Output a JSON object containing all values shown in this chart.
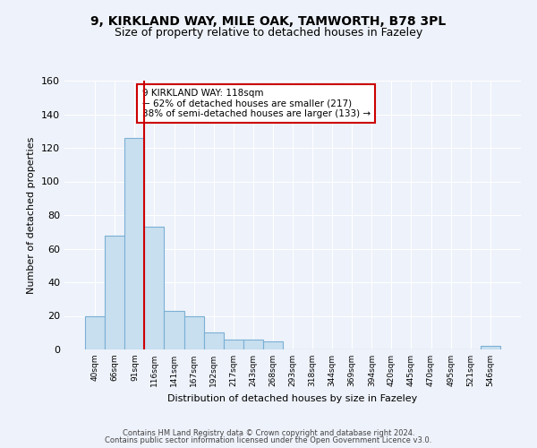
{
  "title": "9, KIRKLAND WAY, MILE OAK, TAMWORTH, B78 3PL",
  "subtitle": "Size of property relative to detached houses in Fazeley",
  "xlabel": "Distribution of detached houses by size in Fazeley",
  "ylabel": "Number of detached properties",
  "bar_labels": [
    "40sqm",
    "66sqm",
    "91sqm",
    "116sqm",
    "141sqm",
    "167sqm",
    "192sqm",
    "217sqm",
    "243sqm",
    "268sqm",
    "293sqm",
    "318sqm",
    "344sqm",
    "369sqm",
    "394sqm",
    "420sqm",
    "445sqm",
    "470sqm",
    "495sqm",
    "521sqm",
    "546sqm"
  ],
  "bar_values": [
    20,
    68,
    126,
    73,
    23,
    20,
    10,
    6,
    6,
    5,
    0,
    0,
    0,
    0,
    0,
    0,
    0,
    0,
    0,
    0,
    2
  ],
  "bar_color": "#c8dff0",
  "bar_edge_color": "#7ab0d4",
  "vline_color": "#cc0000",
  "ylim": [
    0,
    160
  ],
  "yticks": [
    0,
    20,
    40,
    60,
    80,
    100,
    120,
    140,
    160
  ],
  "annotation_line1": "9 KIRKLAND WAY: 118sqm",
  "annotation_line2": "← 62% of detached houses are smaller (217)",
  "annotation_line3": "38% of semi-detached houses are larger (133) →",
  "annotation_box_color": "#cc0000",
  "annotation_box_facecolor": "#ffffff",
  "footer_line1": "Contains HM Land Registry data © Crown copyright and database right 2024.",
  "footer_line2": "Contains public sector information licensed under the Open Government Licence v3.0.",
  "background_color": "#eef2fa",
  "grid_color": "#ffffff",
  "title_fontsize": 10,
  "subtitle_fontsize": 9,
  "axis_label_fontsize": 8
}
